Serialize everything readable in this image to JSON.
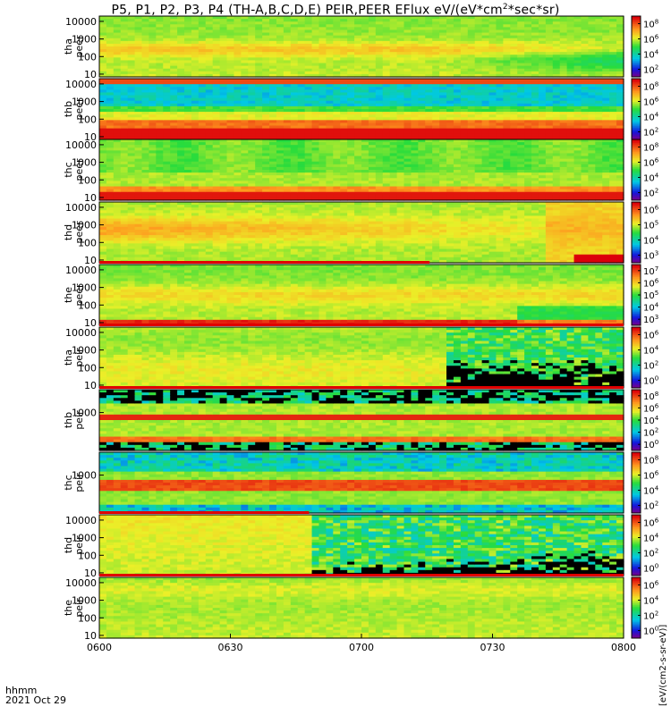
{
  "title": {
    "prefix": "P5, P1, P2, P3, P4 (TH-A,B,C,D,E) PEIR,PEER EFlux eV/(eV*cm",
    "sup": "2",
    "suffix": "*sec*sr)"
  },
  "footer": {
    "time_label": "hhmm",
    "date_label": "2021 Oct 29"
  },
  "colorbar_units": "[eV/(cm2-s-sr-eV)]",
  "chart_data": {
    "type": "heatmap",
    "x_ticks": [
      "0600",
      "0630",
      "0700",
      "0730",
      "0800"
    ],
    "x_range": [
      "0600",
      "0800"
    ],
    "y_scale": "log",
    "panels": [
      {
        "id": "tha-peer",
        "label_line1": "tha",
        "label_line2": "peer",
        "yticks": [
          "10",
          "100",
          "1000",
          "10000"
        ],
        "ylim": [
          7,
          20000
        ],
        "cbticks": [
          "10^2",
          "10^4",
          "10^6",
          "10^8"
        ],
        "pattern": "e1",
        "flag": 0
      },
      {
        "id": "thb-peer",
        "label_line1": "thb",
        "label_line2": "peer",
        "yticks": [
          "10",
          "100",
          "1000",
          "10000"
        ],
        "ylim": [
          7,
          20000
        ],
        "cbticks": [
          "10^2",
          "10^4",
          "10^6",
          "10^8"
        ],
        "pattern": "e2",
        "flag": 0
      },
      {
        "id": "thc-peer",
        "label_line1": "thc",
        "label_line2": "peer",
        "yticks": [
          "10",
          "100",
          "1000",
          "10000"
        ],
        "ylim": [
          7,
          20000
        ],
        "cbticks": [
          "10^2",
          "10^4",
          "10^6",
          "10^8"
        ],
        "pattern": "e3",
        "flag": 0
      },
      {
        "id": "thd-peer",
        "label_line1": "thd",
        "label_line2": "peer",
        "yticks": [
          "10",
          "100",
          "1000",
          "10000"
        ],
        "ylim": [
          7,
          20000
        ],
        "cbticks": [
          "10^3",
          "10^4",
          "10^5",
          "10^6"
        ],
        "pattern": "e4",
        "flag": 0
      },
      {
        "id": "the-peer",
        "label_line1": "the",
        "label_line2": "peer",
        "yticks": [
          "10",
          "100",
          "1000",
          "10000"
        ],
        "ylim": [
          7,
          20000
        ],
        "cbticks": [
          "10^3",
          "10^4",
          "10^5",
          "10^6",
          "10^7"
        ],
        "pattern": "e5",
        "flag": 0.63
      },
      {
        "id": "tha-peir",
        "label_line1": "tha",
        "label_line2": "peir",
        "yticks": [
          "10",
          "100",
          "1000",
          "10000"
        ],
        "ylim": [
          7,
          20000
        ],
        "cbticks": [
          "10^0",
          "10^2",
          "10^4",
          "10^6"
        ],
        "pattern": "i1",
        "flag": 1
      },
      {
        "id": "thb-peir",
        "label_line1": "thb",
        "label_line2": "peir",
        "yticks": [
          "1000"
        ],
        "ylim": [
          7,
          20000
        ],
        "cbticks": [
          "10^0",
          "10^2",
          "10^4",
          "10^6",
          "10^8"
        ],
        "pattern": "i2",
        "flag": 1
      },
      {
        "id": "thc-peir",
        "label_line1": "thc",
        "label_line2": "peir",
        "yticks": [
          "1000"
        ],
        "ylim": [
          7,
          20000
        ],
        "cbticks": [
          "10^2",
          "10^4",
          "10^6",
          "10^8"
        ],
        "pattern": "i3",
        "flag": 0
      },
      {
        "id": "thd-peir",
        "label_line1": "thd",
        "label_line2": "peir",
        "yticks": [
          "10",
          "100",
          "1000",
          "10000"
        ],
        "ylim": [
          7,
          20000
        ],
        "cbticks": [
          "10^0",
          "10^2",
          "10^4",
          "10^6"
        ],
        "pattern": "i4",
        "flag": 0.4
      },
      {
        "id": "the-peir",
        "label_line1": "the",
        "label_line2": "peir",
        "yticks": [
          "10",
          "100",
          "1000",
          "10000"
        ],
        "ylim": [
          7,
          20000
        ],
        "cbticks": [
          "10^0",
          "10^2",
          "10^4",
          "10^6"
        ],
        "pattern": "i5",
        "flag": 1
      }
    ]
  }
}
